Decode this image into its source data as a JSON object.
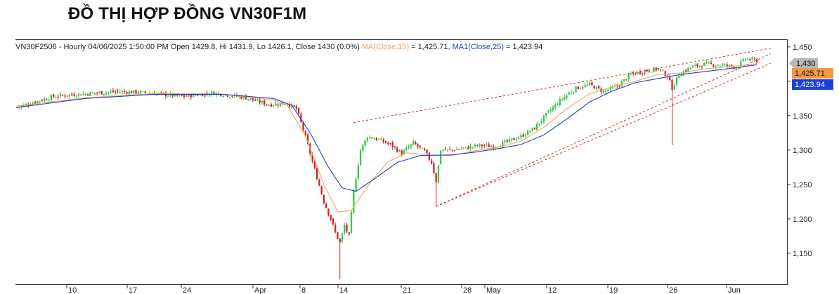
{
  "title": "ĐỒ THỊ HỢP ĐỒNG VN30F1M",
  "info": {
    "prefix": "VN30F2506 - Hourly 04/06/2025 1:50:00 PM Open 1429.8, Hi 1431.9, Lo 1426.1, Close 1430 (0.0%) ",
    "ma15_label": "MA(Close,15)",
    "ma15_value": " = 1,425.71",
    "ma25_label": "MA1(Close,25)",
    "ma25_value": " = 1,423.94"
  },
  "colors": {
    "up": "#2ecc40",
    "down": "#d42020",
    "ma15": "#f4a460",
    "ma25": "#1f3fcf",
    "trend": "#e02020",
    "close_tag": "#b8b8b8",
    "ma15_tag": "#f29a3c",
    "ma25_tag": "#1c3fe0"
  },
  "chart_data": {
    "type": "candlestick",
    "ylim": [
      1105,
      1460
    ],
    "y_ticks": [
      1450,
      1400,
      1350,
      1300,
      1250,
      1200,
      1150
    ],
    "y_tick_labels": [
      "1,450",
      "1,400",
      "1,350",
      "1,300",
      "1,250",
      "1,200",
      "1,150"
    ],
    "x_tick_labels": [
      "10",
      "17",
      "24",
      "Apr",
      "8",
      "14",
      "21",
      "28",
      "May",
      "12",
      "19",
      "26",
      "Jun"
    ],
    "last_values": {
      "close": "1,430",
      "ma15": "1,425.71",
      "ma25": "1,423.94"
    },
    "close_anchors": [
      [
        0,
        1362
      ],
      [
        16,
        1378
      ],
      [
        30,
        1382
      ],
      [
        44,
        1385
      ],
      [
        58,
        1383
      ],
      [
        72,
        1378
      ],
      [
        86,
        1383
      ],
      [
        100,
        1376
      ],
      [
        110,
        1366
      ],
      [
        118,
        1368
      ],
      [
        122,
        1360
      ],
      [
        125,
        1330
      ],
      [
        128,
        1295
      ],
      [
        131,
        1260
      ],
      [
        134,
        1225
      ],
      [
        137,
        1200
      ],
      [
        139,
        1180
      ],
      [
        141,
        1165
      ],
      [
        143,
        1190
      ],
      [
        145,
        1175
      ],
      [
        147,
        1240
      ],
      [
        150,
        1300
      ],
      [
        153,
        1320
      ],
      [
        158,
        1315
      ],
      [
        163,
        1308
      ],
      [
        168,
        1295
      ],
      [
        173,
        1310
      ],
      [
        178,
        1298
      ],
      [
        181,
        1282
      ],
      [
        183,
        1255
      ],
      [
        185,
        1300
      ],
      [
        190,
        1300
      ],
      [
        196,
        1303
      ],
      [
        202,
        1307
      ],
      [
        208,
        1305
      ],
      [
        214,
        1312
      ],
      [
        220,
        1320
      ],
      [
        226,
        1332
      ],
      [
        232,
        1355
      ],
      [
        238,
        1375
      ],
      [
        244,
        1390
      ],
      [
        250,
        1395
      ],
      [
        256,
        1385
      ],
      [
        262,
        1393
      ],
      [
        268,
        1410
      ],
      [
        274,
        1415
      ],
      [
        280,
        1418
      ],
      [
        284,
        1408
      ],
      [
        286,
        1390
      ],
      [
        289,
        1410
      ],
      [
        294,
        1420
      ],
      [
        300,
        1425
      ],
      [
        306,
        1424
      ],
      [
        311,
        1422
      ],
      [
        314,
        1420
      ],
      [
        318,
        1433
      ],
      [
        323,
        1430
      ]
    ],
    "ma15": [
      [
        0,
        1364
      ],
      [
        30,
        1376
      ],
      [
        60,
        1382
      ],
      [
        90,
        1381
      ],
      [
        112,
        1373
      ],
      [
        118,
        1365
      ],
      [
        126,
        1320
      ],
      [
        134,
        1250
      ],
      [
        140,
        1210
      ],
      [
        146,
        1212
      ],
      [
        154,
        1252
      ],
      [
        162,
        1283
      ],
      [
        170,
        1296
      ],
      [
        180,
        1293
      ],
      [
        190,
        1292
      ],
      [
        200,
        1299
      ],
      [
        210,
        1304
      ],
      [
        220,
        1313
      ],
      [
        230,
        1333
      ],
      [
        240,
        1360
      ],
      [
        250,
        1382
      ],
      [
        260,
        1392
      ],
      [
        270,
        1400
      ],
      [
        280,
        1410
      ],
      [
        290,
        1412
      ],
      [
        300,
        1418
      ],
      [
        310,
        1421
      ],
      [
        323,
        1425.71
      ]
    ],
    "ma25": [
      [
        0,
        1362
      ],
      [
        30,
        1375
      ],
      [
        60,
        1381
      ],
      [
        90,
        1381
      ],
      [
        112,
        1375
      ],
      [
        120,
        1365
      ],
      [
        128,
        1325
      ],
      [
        136,
        1275
      ],
      [
        142,
        1245
      ],
      [
        148,
        1240
      ],
      [
        156,
        1258
      ],
      [
        166,
        1282
      ],
      [
        176,
        1292
      ],
      [
        190,
        1293
      ],
      [
        200,
        1297
      ],
      [
        210,
        1302
      ],
      [
        220,
        1308
      ],
      [
        230,
        1322
      ],
      [
        240,
        1345
      ],
      [
        250,
        1370
      ],
      [
        260,
        1386
      ],
      [
        270,
        1398
      ],
      [
        280,
        1404
      ],
      [
        290,
        1410
      ],
      [
        300,
        1414
      ],
      [
        310,
        1418
      ],
      [
        323,
        1423.94
      ]
    ],
    "trendlines": [
      [
        [
          147,
          1340
        ],
        [
          329,
          1448
        ]
      ],
      [
        [
          183,
          1218
        ],
        [
          329,
          1440
        ]
      ],
      [
        [
          183,
          1218
        ],
        [
          329,
          1426
        ]
      ]
    ],
    "annotations": [
      {
        "x": 141,
        "low": 1112
      },
      {
        "x": 183,
        "low": 1218
      },
      {
        "x": 286,
        "low": 1307
      }
    ]
  }
}
